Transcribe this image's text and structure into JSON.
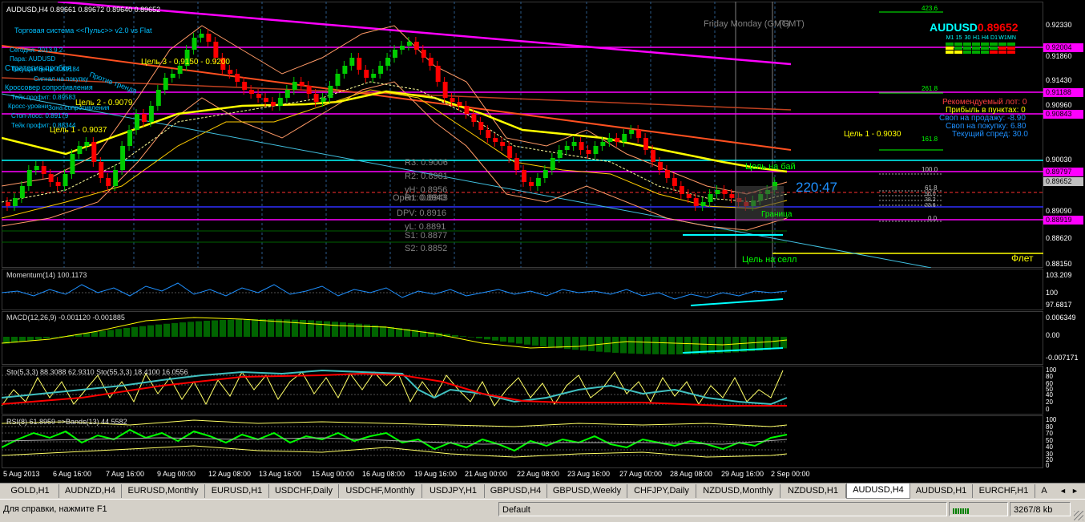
{
  "chart": {
    "header": "AUDUSD,H4  0.89661 0.89672 0.89640 0.89652",
    "system_title": "Торговая система <<Пульс>> v2.0 vs Flat",
    "info_lines": [
      "Сегодня: 2013.9.2",
      "Пара:   AUDUSD",
      "Текущая цена: 0.89184"
    ],
    "overlapped_text": [
      "Стратегия пробоя",
      "Сигнал на покупку",
      "Тейк профит: 0.89583",
      "Кросс-уровни",
      "Кроссовер сопротивления",
      "Зона сопротивления",
      "Стоп-лосс: 0.89179",
      "Тейк профит: 0.88344",
      "Против тренда"
    ],
    "target_labels": [
      "Цель 3 - 0.9150 - 0.9200",
      "Цель 2 - 0.9079",
      "Цель 1 - 0.9037",
      "Цель 1 - 0.9030"
    ],
    "session_label": "Friday  Monday    (GMT)",
    "session_label2": "(GMT)",
    "symbol_name": "AUDUSD",
    "symbol_price": "0.89652",
    "timeframes": [
      "M1",
      "15",
      "30",
      "H1",
      "H4",
      "D1",
      "W1",
      "MN"
    ],
    "info_panel": [
      "Рекомендуемый лот: 0",
      "Прибыль в пунктах: 0",
      "Своп на продажу: -8.90",
      "Своп на покупку: 6.80",
      "Текущий спред: 30.0"
    ],
    "pivots": {
      "r3": "R3:  0.9006",
      "r2": "R2:  0.8981",
      "yh": "yH:  0.8956",
      "open": "Open:  0.8943",
      "r1": "R1:  0.8943",
      "dpv": "DPV:  0.8916",
      "yl": "yL:  0.8891",
      "s1": "S1:  0.8877",
      "s2": "S2:  0.8852"
    },
    "fib_levels": [
      "423.6",
      "261.8",
      "161.8",
      "100.0",
      "61.8",
      "50.0",
      "38.2",
      "23.6",
      "0.0"
    ],
    "buy_target": "Цель на бай",
    "sell_target": "Цель на селл",
    "flat_label": "Флет",
    "range_label": "Граница",
    "countdown": "220:47",
    "price_axis": [
      "0.92330",
      "0.91860",
      "0.91430",
      "0.90960",
      "0.90030",
      "0.89090",
      "0.88620",
      "0.88150"
    ],
    "price_tags": [
      {
        "value": "0.92004",
        "color": "#ff00ff"
      },
      {
        "value": "0.91188",
        "color": "#ff00ff"
      },
      {
        "value": "0.90843",
        "color": "#ff00ff"
      },
      {
        "value": "0.89797",
        "color": "#ff00ff"
      },
      {
        "value": "0.89652",
        "color": "#c0c0c0"
      },
      {
        "value": "0.88919",
        "color": "#ff00ff"
      }
    ],
    "x_axis": [
      "5 Aug 2013",
      "6 Aug 16:00",
      "7 Aug 16:00",
      "9 Aug 00:00",
      "12 Aug 08:00",
      "13 Aug 16:00",
      "15 Aug 00:00",
      "16 Aug 08:00",
      "19 Aug 16:00",
      "21 Aug 00:00",
      "22 Aug 08:00",
      "23 Aug 16:00",
      "27 Aug 00:00",
      "28 Aug 08:00",
      "29 Aug 16:00",
      "2 Sep 00:00"
    ]
  },
  "indicators": {
    "momentum": {
      "title": "Momentum(14) 100.1173",
      "axis": [
        "103.209",
        "100",
        "97.6817"
      ]
    },
    "macd": {
      "title": "MACD(12,26,9) -0.001120 -0.001885",
      "axis": [
        "0.006349",
        "0.00",
        "-0.007171"
      ]
    },
    "stoch": {
      "title": "Sto(5,3,3) 88.3088 62.9310  Sto(55,3,3) 18.4100 16.0556",
      "axis": [
        "100",
        "80",
        "60",
        "50",
        "40",
        "20",
        "0"
      ]
    },
    "rsi": {
      "title": "RSI(8) 61.8959  =>Bands(13) 44.5582",
      "axis": [
        "100",
        "80",
        "70",
        "50",
        "40",
        "30",
        "20",
        "0"
      ]
    }
  },
  "tabs": [
    "GOLD,H1",
    "AUDNZD,H4",
    "EURUSD,Monthly",
    "EURUSD,H1",
    "USDCHF,Daily",
    "USDCHF,Monthly",
    "USDJPY,H1",
    "GBPUSD,H4",
    "GBPUSD,Weekly",
    "CHFJPY,Daily",
    "NZDUSD,Monthly",
    "NZDUSD,H1",
    "AUDUSD,H4",
    "AUDUSD,H1",
    "EURCHF,H1",
    "A"
  ],
  "active_tab": "AUDUSD,H4",
  "status": {
    "help": "Для справки, нажмите F1",
    "profile": "Default",
    "traffic": "3267/8 kb"
  },
  "colors": {
    "price_line": "#00ff00",
    "bull_candle": "#00cc00",
    "bear_candle": "#ff0000",
    "fast_ma": "#ffff00",
    "slow_ma": "#ff00ff",
    "trend_line": "#00bfff"
  }
}
